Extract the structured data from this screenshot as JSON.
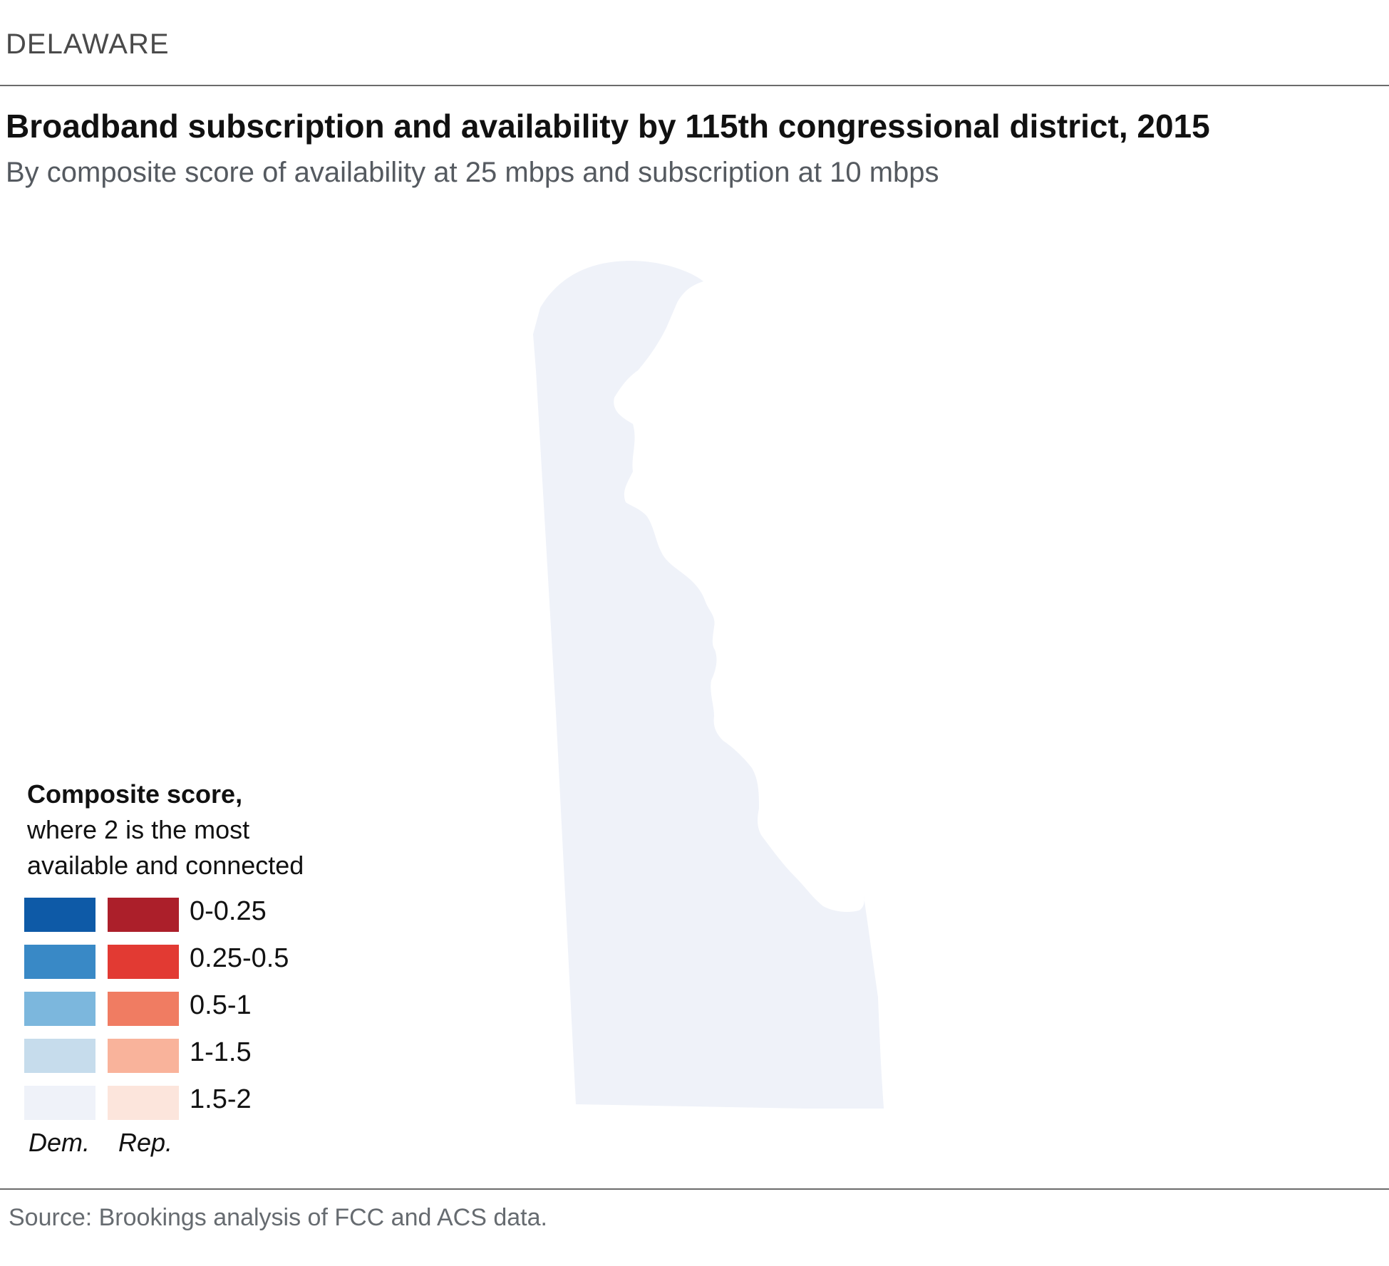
{
  "header": {
    "kicker": "DELAWARE",
    "title": "Broadband subscription and availability by 115th congressional district, 2015",
    "subtitle": "By composite score of availability at 25 mbps and subscription at 10 mbps"
  },
  "map": {
    "regions": [
      {
        "name": "Delaware at-large district",
        "party": "Dem.",
        "score_class": "1.5-2",
        "fill": "#eff2f9"
      }
    ]
  },
  "legend": {
    "title_bold": "Composite score,",
    "title_line1": "where 2 is the most",
    "title_line2": "available and connected",
    "rows": [
      {
        "range": "0-0.25",
        "dem_color": "#0e5aa7",
        "rep_color": "#ac1f2a"
      },
      {
        "range": "0.25-0.5",
        "dem_color": "#3989c6",
        "rep_color": "#e23a33"
      },
      {
        "range": "0.5-1",
        "dem_color": "#7cb7dd",
        "rep_color": "#f07c62"
      },
      {
        "range": "1-1.5",
        "dem_color": "#c6dcec",
        "rep_color": "#f9b39b"
      },
      {
        "range": "1.5-2",
        "dem_color": "#eff2f9",
        "rep_color": "#fce5dc"
      }
    ],
    "dem_label": "Dem.",
    "rep_label": "Rep."
  },
  "source": "Source: Brookings analysis of FCC and ACS data."
}
